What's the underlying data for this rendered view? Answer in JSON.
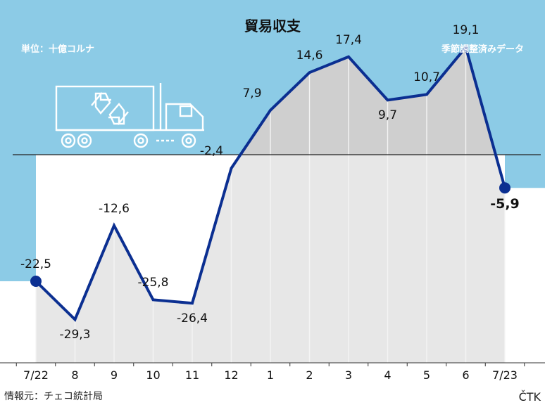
{
  "chart_data": {
    "type": "line",
    "title": "貿易収支",
    "unit_note": "単位：十億コルナ",
    "adjustment_note": "季節調整済みデータ",
    "categories": [
      "7/22",
      "8",
      "9",
      "10",
      "11",
      "12",
      "1",
      "2",
      "3",
      "4",
      "5",
      "6",
      "7/23"
    ],
    "values": [
      -22.5,
      -29.3,
      -12.6,
      -25.8,
      -26.4,
      -2.4,
      7.9,
      14.6,
      17.4,
      9.7,
      10.7,
      19.1,
      -5.9
    ],
    "value_labels": [
      "-22,5",
      "-29,3",
      "-12,6",
      "-25,8",
      "-26,4",
      "-2,4",
      "7,9",
      "14,6",
      "17,4",
      "9,7",
      "10,7",
      "19,1",
      "-5,9"
    ],
    "ylim": [
      -37,
      24.5
    ],
    "zero_line": true,
    "grid": false,
    "source": "情報元：チェコ統計局",
    "credit": "ČTK",
    "colors": {
      "sky": "#8ccbe6",
      "line": "#0b2f91",
      "area_positive": "#cfcfcf",
      "area_negative": "#e7e7e7",
      "zero_line": "#222222",
      "truck_icon": "#ffffff"
    },
    "icons": [
      "truck-icon",
      "trade-arrows-icon"
    ]
  }
}
